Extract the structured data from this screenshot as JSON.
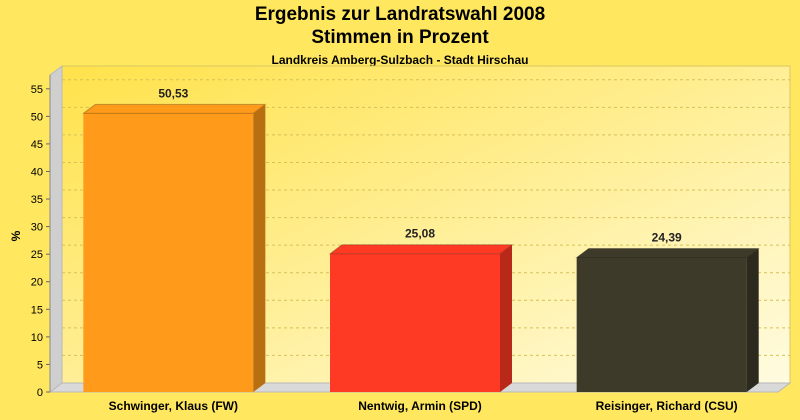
{
  "chart_data": {
    "type": "bar",
    "title": "Ergebnis zur Landratswahl 2008",
    "subtitle": "Stimmen in Prozent",
    "subsubtitle": "Landkreis Amberg-Sulzbach - Stadt Hirschau",
    "ylabel": "%",
    "xlabel": "",
    "ylim": [
      0,
      57.5
    ],
    "yticks": [
      "0",
      "5",
      "10",
      "15",
      "20",
      "25",
      "30",
      "35",
      "40",
      "45",
      "50",
      "55"
    ],
    "categories": [
      "Schwinger, Klaus (FW)",
      "Nentwig, Armin (SPD)",
      "Reisinger, Richard (CSU)"
    ],
    "values": [
      50.53,
      25.08,
      24.39
    ],
    "value_labels": [
      "50,53",
      "25,08",
      "24,39"
    ],
    "bar_colors": [
      "#ff9a1a",
      "#ff3a24",
      "#3e3a2a"
    ],
    "grid": true,
    "legend": "none"
  }
}
